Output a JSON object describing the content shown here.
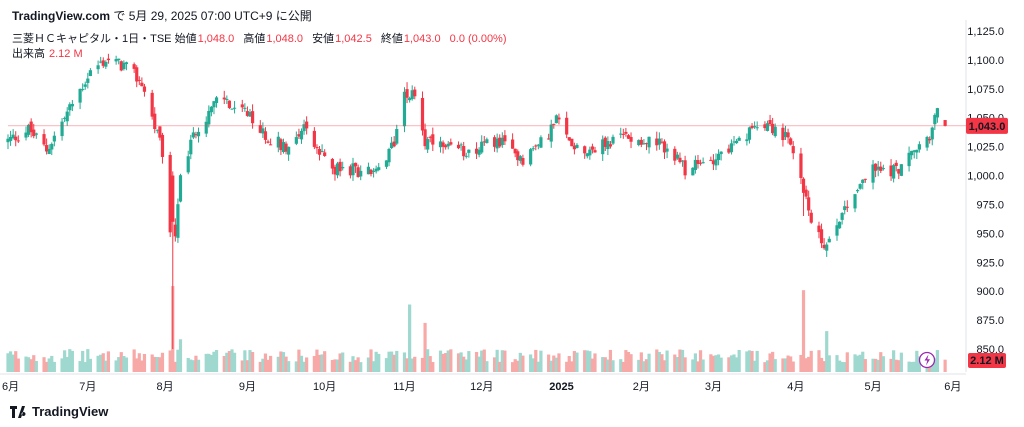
{
  "header": {
    "brand": "TradingView.com",
    "published": "で 5月 29, 2025 07:00 UTC+9 に公開"
  },
  "legend": {
    "symbol": "三菱ＨＣキャピタル・1日・TSE",
    "open_label": "始値",
    "open_value": "1,048.0",
    "high_label": "高値",
    "high_value": "1,048.0",
    "low_label": "安値",
    "low_value": "1,042.5",
    "close_label": "終値",
    "close_value": "1,043.0",
    "change": "0.0 (0.00%)"
  },
  "volume": {
    "label": "出来高",
    "value": "2.12 M"
  },
  "footer": {
    "logo_text": "TradingView"
  },
  "colors": {
    "up": "#22ab94",
    "down": "#f23645",
    "up_vol": "#9fd8cf",
    "down_vol": "#f7a9a7"
  },
  "chart_data": {
    "type": "candlestick",
    "y_ticks": [
      "1,125.0",
      "1,100.0",
      "1,075.0",
      "1,050.0",
      "1,025.0",
      "1,000.0",
      "975.0",
      "950.0",
      "925.0",
      "900.0",
      "875.0",
      "850.0"
    ],
    "y_tick_values": [
      1125,
      1100,
      1075,
      1050,
      1025,
      1000,
      975,
      950,
      925,
      900,
      875,
      850
    ],
    "ylim": [
      840,
      1130
    ],
    "x_ticks": [
      "6月",
      "7月",
      "8月",
      "9月",
      "10月",
      "11月",
      "12月",
      "2025",
      "2月",
      "3月",
      "4月",
      "5月",
      "6月"
    ],
    "x_tick_days": [
      1,
      31,
      61,
      93,
      123,
      154,
      184,
      215,
      246,
      274,
      306,
      336,
      367
    ],
    "x_range_days": [
      0,
      369
    ],
    "last_price_label": "1,043.0",
    "last_price": 1043.0,
    "last_volume_label": "2.12 M",
    "anchors": [
      [
        0,
        1030
      ],
      [
        8,
        1040
      ],
      [
        15,
        1022
      ],
      [
        22,
        1050
      ],
      [
        32,
        1090
      ],
      [
        38,
        1100
      ],
      [
        45,
        1095
      ],
      [
        52,
        1080
      ],
      [
        56,
        1050
      ],
      [
        60,
        1020
      ],
      [
        64,
        920
      ],
      [
        67,
        1000
      ],
      [
        73,
        1040
      ],
      [
        78,
        1055
      ],
      [
        83,
        1070
      ],
      [
        88,
        1055
      ],
      [
        92,
        1055
      ],
      [
        97,
        1040
      ],
      [
        103,
        1030
      ],
      [
        110,
        1025
      ],
      [
        115,
        1045
      ],
      [
        120,
        1020
      ],
      [
        128,
        1005
      ],
      [
        135,
        1005
      ],
      [
        145,
        1002
      ],
      [
        150,
        1030
      ],
      [
        154,
        1075
      ],
      [
        159,
        1065
      ],
      [
        162,
        1030
      ],
      [
        170,
        1022
      ],
      [
        180,
        1022
      ],
      [
        190,
        1030
      ],
      [
        200,
        1015
      ],
      [
        208,
        1030
      ],
      [
        213,
        1048
      ],
      [
        218,
        1030
      ],
      [
        225,
        1022
      ],
      [
        233,
        1028
      ],
      [
        240,
        1035
      ],
      [
        248,
        1030
      ],
      [
        255,
        1025
      ],
      [
        263,
        1005
      ],
      [
        270,
        1010
      ],
      [
        277,
        1020
      ],
      [
        286,
        1030
      ],
      [
        292,
        1050
      ],
      [
        298,
        1040
      ],
      [
        303,
        1030
      ],
      [
        309,
        990
      ],
      [
        313,
        950
      ],
      [
        318,
        940
      ],
      [
        323,
        965
      ],
      [
        330,
        990
      ],
      [
        335,
        1005
      ],
      [
        345,
        1005
      ],
      [
        352,
        1020
      ],
      [
        358,
        1035
      ],
      [
        361,
        1055
      ],
      [
        364,
        1043
      ]
    ],
    "vol_spikes": [
      [
        64,
        21000000
      ],
      [
        67,
        8000000
      ],
      [
        156,
        16500000
      ],
      [
        162,
        12000000
      ],
      [
        167,
        11000000
      ],
      [
        174,
        13500000
      ],
      [
        272,
        8000000
      ],
      [
        309,
        20000000
      ],
      [
        313,
        13000000
      ],
      [
        318,
        10000000
      ]
    ],
    "vol_ylim": [
      0,
      22000000
    ]
  }
}
